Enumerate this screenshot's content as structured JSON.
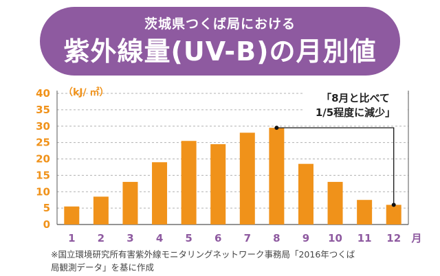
{
  "banner": {
    "subtitle": "茨城県つくば局における",
    "title": "紫外線量(UV-B)の月別値"
  },
  "unit_label": "（kJ/ ㎡）",
  "annotation": {
    "line1": "「8月と比べて",
    "line2": "1/5程度に減少」"
  },
  "footnote": {
    "line1": "※国立環境研究所有害紫外線モニタリングネットワーク事務局「2016年つくば",
    "line2": "局観測データ」を基に作成"
  },
  "colors": {
    "banner": "#8e5aa0",
    "bar": "#f0921a",
    "axis_text": "#f0921a",
    "month_text": "#8e5aa0",
    "grid": "#b0b0b0"
  },
  "chart_data": {
    "type": "bar",
    "categories": [
      "1",
      "2",
      "3",
      "4",
      "5",
      "6",
      "7",
      "8",
      "9",
      "10",
      "11",
      "12"
    ],
    "values": [
      5.5,
      8.5,
      13,
      19,
      25.5,
      24.5,
      28,
      29.5,
      18.5,
      13,
      7.5,
      6
    ],
    "x_unit": "月",
    "ylabel": "（kJ/ ㎡）",
    "ylim": [
      0,
      40
    ],
    "yticks": [
      0,
      5,
      10,
      15,
      20,
      25,
      30,
      35,
      40
    ],
    "grid": true
  }
}
